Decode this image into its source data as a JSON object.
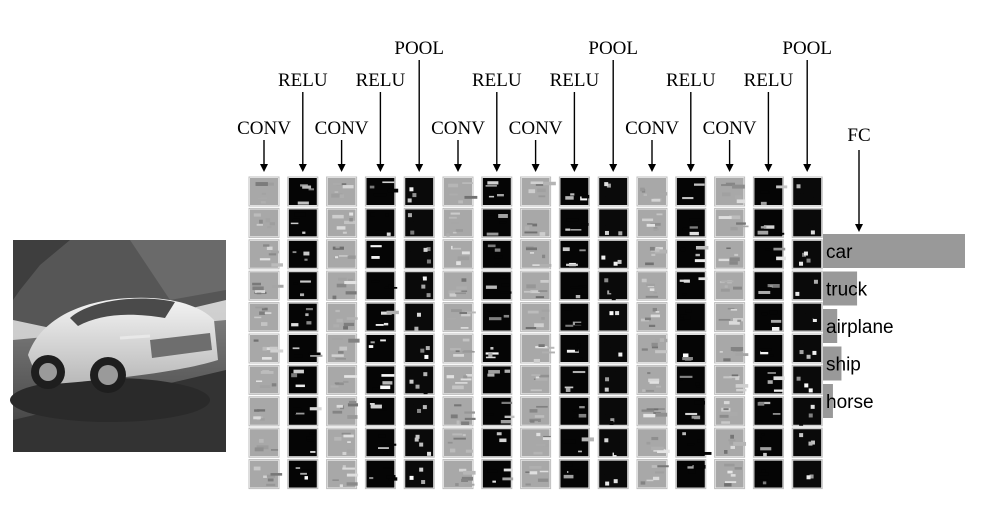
{
  "diagram": {
    "layers": [
      {
        "label": "CONV",
        "kind": "conv"
      },
      {
        "label": "RELU",
        "kind": "relu"
      },
      {
        "label": "CONV",
        "kind": "conv"
      },
      {
        "label": "RELU",
        "kind": "relu"
      },
      {
        "label": "POOL",
        "kind": "pool"
      },
      {
        "label": "CONV",
        "kind": "conv"
      },
      {
        "label": "RELU",
        "kind": "relu"
      },
      {
        "label": "CONV",
        "kind": "conv"
      },
      {
        "label": "RELU",
        "kind": "relu"
      },
      {
        "label": "POOL",
        "kind": "pool"
      },
      {
        "label": "CONV",
        "kind": "conv"
      },
      {
        "label": "RELU",
        "kind": "relu"
      },
      {
        "label": "CONV",
        "kind": "conv"
      },
      {
        "label": "RELU",
        "kind": "relu"
      },
      {
        "label": "POOL",
        "kind": "pool"
      }
    ],
    "fc": {
      "label": "FC",
      "classes": [
        {
          "label": "car",
          "score": 1.0
        },
        {
          "label": "truck",
          "score": 0.24
        },
        {
          "label": "airplane",
          "score": 0.1
        },
        {
          "label": "ship",
          "score": 0.13
        },
        {
          "label": "horse",
          "score": 0.07
        }
      ]
    },
    "colors": {
      "bar": "#999999",
      "conv_tile": "#a8a8a8",
      "relu_tile": "#050505",
      "pool_tile": "#0a0a0a",
      "tile_border": "#bdbdbd"
    }
  }
}
